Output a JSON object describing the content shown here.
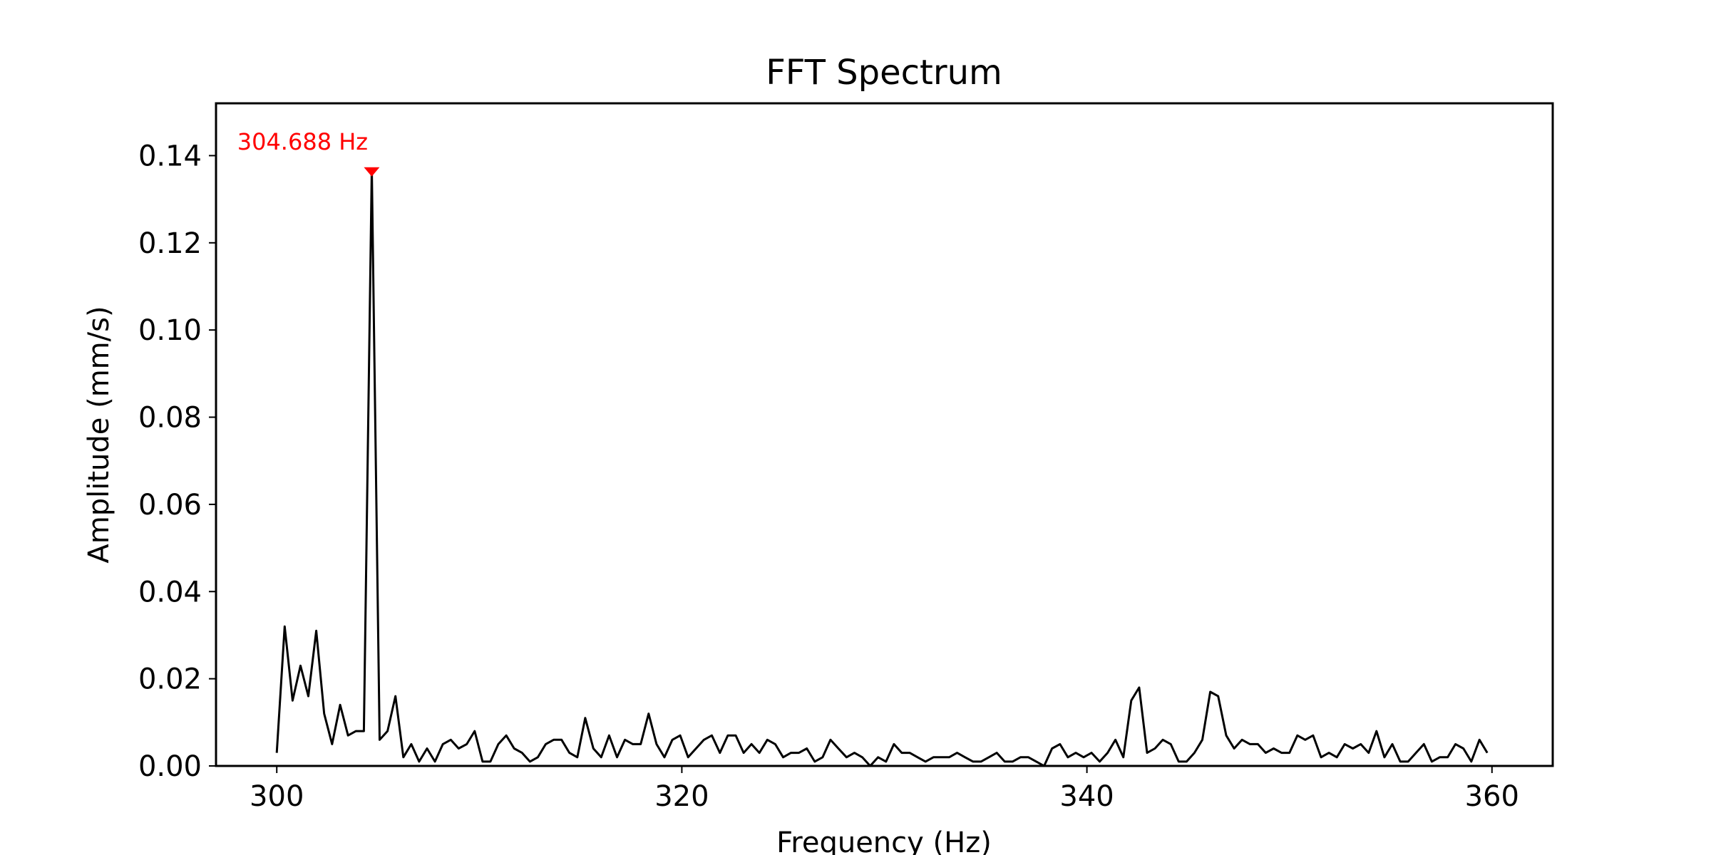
{
  "chart_data": {
    "type": "line",
    "title": "FFT Spectrum",
    "xlabel": "Frequency (Hz)",
    "ylabel": "Amplitude (mm/s)",
    "xlim": [
      297,
      363
    ],
    "ylim": [
      0,
      0.152
    ],
    "xticks": [
      300,
      320,
      340,
      360
    ],
    "yticks": [
      0.0,
      0.02,
      0.04,
      0.06,
      0.08,
      0.1,
      0.12,
      0.14
    ],
    "ytick_labels": [
      "0.00",
      "0.02",
      "0.04",
      "0.06",
      "0.08",
      "0.10",
      "0.12",
      "0.14"
    ],
    "grid": false,
    "line_color": "#000000",
    "peak": {
      "x": 304.688,
      "y": 0.137,
      "label": "304.688 Hz",
      "color": "#ff0000"
    },
    "series": [
      {
        "x": [
          300.0,
          300.39,
          300.78,
          301.17,
          301.56,
          301.95,
          302.34,
          302.73,
          303.13,
          303.52,
          303.91,
          304.3,
          304.69,
          305.08,
          305.47,
          305.86,
          306.25,
          306.64,
          307.03,
          307.42,
          307.81,
          308.2,
          308.59,
          308.98,
          309.38,
          309.77,
          310.16,
          310.55,
          310.94,
          311.33,
          311.72,
          312.11,
          312.5,
          312.89,
          313.28,
          313.67,
          314.06,
          314.45,
          314.84,
          315.23,
          315.63,
          316.02,
          316.41,
          316.8,
          317.19,
          317.58,
          317.97,
          318.36,
          318.75,
          319.14,
          319.53,
          319.92,
          320.31,
          320.7,
          321.09,
          321.48,
          321.88,
          322.27,
          322.66,
          323.05,
          323.44,
          323.83,
          324.22,
          324.61,
          325.0,
          325.39,
          325.78,
          326.17,
          326.56,
          326.95,
          327.34,
          327.73,
          328.13,
          328.52,
          328.91,
          329.3,
          329.69,
          330.08,
          330.47,
          330.86,
          331.25,
          331.64,
          332.03,
          332.42,
          332.81,
          333.2,
          333.59,
          333.98,
          334.38,
          334.77,
          335.16,
          335.55,
          335.94,
          336.33,
          336.72,
          337.11,
          337.5,
          337.89,
          338.28,
          338.67,
          339.06,
          339.45,
          339.84,
          340.23,
          340.63,
          341.02,
          341.41,
          341.8,
          342.19,
          342.58,
          342.97,
          343.36,
          343.75,
          344.14,
          344.53,
          344.92,
          345.31,
          345.7,
          346.09,
          346.48,
          346.88,
          347.27,
          347.66,
          348.05,
          348.44,
          348.83,
          349.22,
          349.61,
          350.0,
          350.39,
          350.78,
          351.17,
          351.56,
          351.95,
          352.34,
          352.73,
          353.13,
          353.52,
          353.91,
          354.3,
          354.69,
          355.08,
          355.47,
          355.86,
          356.25,
          356.64,
          357.03,
          357.42,
          357.81,
          358.2,
          358.59,
          358.98,
          359.38,
          359.77
        ],
        "values": [
          0.003,
          0.032,
          0.015,
          0.023,
          0.016,
          0.031,
          0.012,
          0.005,
          0.014,
          0.007,
          0.008,
          0.008,
          0.137,
          0.006,
          0.008,
          0.016,
          0.002,
          0.005,
          0.001,
          0.004,
          0.001,
          0.005,
          0.006,
          0.004,
          0.005,
          0.008,
          0.001,
          0.001,
          0.005,
          0.007,
          0.004,
          0.003,
          0.001,
          0.002,
          0.005,
          0.006,
          0.006,
          0.003,
          0.002,
          0.011,
          0.004,
          0.002,
          0.007,
          0.002,
          0.006,
          0.005,
          0.005,
          0.012,
          0.005,
          0.002,
          0.006,
          0.007,
          0.002,
          0.004,
          0.006,
          0.007,
          0.003,
          0.007,
          0.007,
          0.003,
          0.005,
          0.003,
          0.006,
          0.005,
          0.002,
          0.003,
          0.003,
          0.004,
          0.001,
          0.002,
          0.006,
          0.004,
          0.002,
          0.003,
          0.002,
          0.0,
          0.002,
          0.001,
          0.005,
          0.003,
          0.003,
          0.002,
          0.001,
          0.002,
          0.002,
          0.002,
          0.003,
          0.002,
          0.001,
          0.001,
          0.002,
          0.003,
          0.001,
          0.001,
          0.002,
          0.002,
          0.001,
          0.0,
          0.004,
          0.005,
          0.002,
          0.003,
          0.002,
          0.003,
          0.001,
          0.003,
          0.006,
          0.002,
          0.015,
          0.018,
          0.003,
          0.004,
          0.006,
          0.005,
          0.001,
          0.001,
          0.003,
          0.006,
          0.017,
          0.016,
          0.007,
          0.004,
          0.006,
          0.005,
          0.005,
          0.003,
          0.004,
          0.003,
          0.003,
          0.007,
          0.006,
          0.007,
          0.002,
          0.003,
          0.002,
          0.005,
          0.004,
          0.005,
          0.003,
          0.008,
          0.002,
          0.005,
          0.001,
          0.001,
          0.003,
          0.005,
          0.001,
          0.002,
          0.002,
          0.005,
          0.004,
          0.001,
          0.006,
          0.003
        ]
      }
    ]
  }
}
